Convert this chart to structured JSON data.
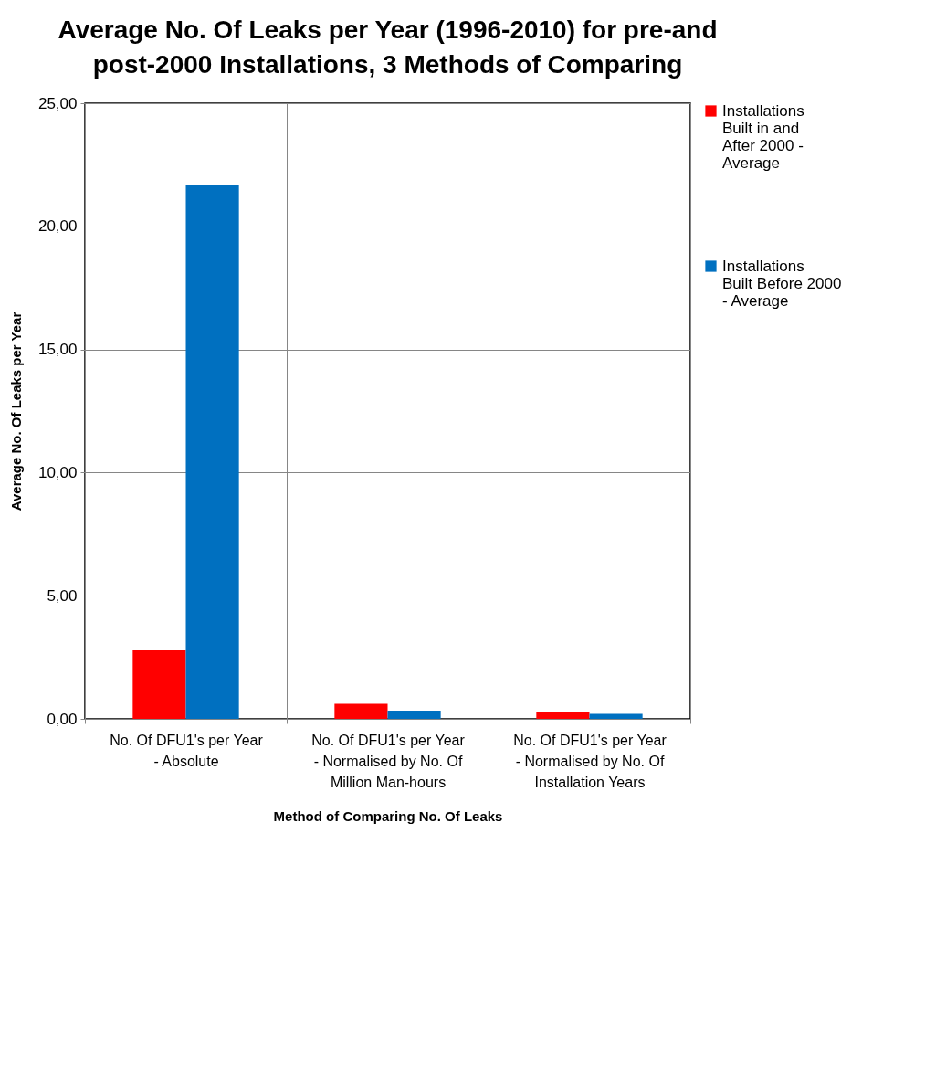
{
  "chart_data": {
    "type": "bar",
    "title": "Average No. Of Leaks per Year (1996-2010) for pre-and post-2000 Installations, 3 Methods of Comparing",
    "xlabel": "Method of Comparing No. Of Leaks",
    "ylabel": "Average No. Of Leaks per Year",
    "categories": [
      "No. Of DFU1's per Year - Absolute",
      "No. Of DFU1's per Year - Normalised by No. Of Million Man-hours",
      "No. Of DFU1's per Year - Normalised by No. Of Installation Years"
    ],
    "series": [
      {
        "name": "Installations Built in and After 2000 - Average",
        "color": "#ff0000",
        "values": [
          2.78,
          0.61,
          0.27
        ]
      },
      {
        "name": "Installations Built Before 2000 - Average",
        "color": "#0070c0",
        "values": [
          21.7,
          0.33,
          0.2
        ]
      }
    ],
    "ylim": [
      0,
      25
    ],
    "yticks": [
      {
        "value": 0,
        "label": "0,00"
      },
      {
        "value": 5,
        "label": "5,00"
      },
      {
        "value": 10,
        "label": "10,00"
      },
      {
        "value": 15,
        "label": "15,00"
      },
      {
        "value": 20,
        "label": "20,00"
      },
      {
        "value": 25,
        "label": "25,00"
      }
    ],
    "grid": true,
    "legend": "right"
  }
}
